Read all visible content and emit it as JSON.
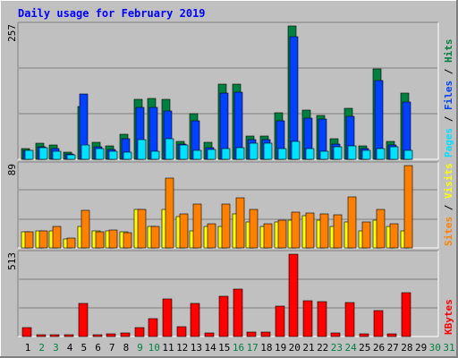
{
  "chart_data": {
    "type": "bar",
    "title": "Daily usage for February 2019",
    "categories": [
      "1",
      "2",
      "3",
      "4",
      "5",
      "6",
      "7",
      "8",
      "9",
      "10",
      "11",
      "12",
      "13",
      "14",
      "15",
      "16",
      "17",
      "18",
      "19",
      "20",
      "21",
      "22",
      "23",
      "24",
      "25",
      "26",
      "27",
      "28",
      "29",
      "30",
      "31"
    ],
    "weekend_days": [
      2,
      3,
      9,
      10,
      16,
      17,
      23,
      24,
      30,
      31
    ],
    "panels": [
      {
        "name": "hits-files-pages",
        "max_label": "257",
        "ymax": 257,
        "right_labels": [
          "Hits",
          "Files",
          "Pages"
        ],
        "right_colors": [
          "#008040",
          "#0040ff",
          "#00e0ff"
        ],
        "series": [
          {
            "name": "Hits",
            "color": "#008040",
            "values": [
              20,
              31,
              28,
              13,
              102,
              33,
              26,
              48,
              116,
              117,
              116,
              34,
              88,
              33,
              145,
              145,
              44,
              44,
              90,
              257,
              95,
              85,
              40,
              98,
              26,
              175,
              34,
              128
            ]
          },
          {
            "name": "Files",
            "color": "#0040ff",
            "values": [
              17,
              24,
              20,
              11,
              126,
              24,
              19,
              40,
              100,
              100,
              93,
              29,
              74,
              22,
              128,
              130,
              38,
              38,
              74,
              236,
              80,
              78,
              30,
              83,
              20,
              152,
              27,
              111
            ]
          },
          {
            "name": "Pages",
            "color": "#00e0ff",
            "values": [
              17,
              23,
              16,
              8,
              28,
              20,
              16,
              14,
              38,
              16,
              40,
              27,
              18,
              19,
              20,
              23,
              31,
              31,
              20,
              35,
              21,
              16,
              25,
              26,
              18,
              20,
              24,
              18
            ]
          }
        ]
      },
      {
        "name": "visits-sites",
        "max_label": "89",
        "ymax": 89,
        "right_labels": [
          "Visits",
          "Sites"
        ],
        "right_colors": [
          "#ffff00",
          "#ff8000"
        ],
        "series": [
          {
            "name": "Visits",
            "color": "#ffff00",
            "values": [
              17,
              18,
              18,
              10,
              23,
              18,
              18,
              17,
              42,
              23,
              42,
              34,
              18,
              23,
              23,
              37,
              28,
              23,
              28,
              30,
              35,
              30,
              23,
              28,
              18,
              30,
              23,
              18
            ]
          },
          {
            "name": "Sites",
            "color": "#ff8000",
            "values": [
              17,
              18,
              23,
              11,
              41,
              17,
              19,
              16,
              42,
              23,
              75,
              37,
              47,
              26,
              47,
              54,
              42,
              26,
              30,
              39,
              38,
              37,
              36,
              55,
              28,
              42,
              26,
              89
            ]
          }
        ]
      },
      {
        "name": "kbytes",
        "max_label": "513",
        "ymax": 513,
        "right_labels": [
          "KBytes"
        ],
        "right_colors": [
          "#ff0000"
        ],
        "series": [
          {
            "name": "KBytes",
            "color": "#ff0000",
            "values": [
              58,
              12,
              12,
              9,
              205,
              9,
              14,
              25,
              58,
              112,
              234,
              61,
              205,
              24,
              250,
              298,
              30,
              30,
              188,
              513,
              223,
              215,
              20,
              212,
              18,
              164,
              17,
              274
            ]
          }
        ]
      }
    ]
  }
}
